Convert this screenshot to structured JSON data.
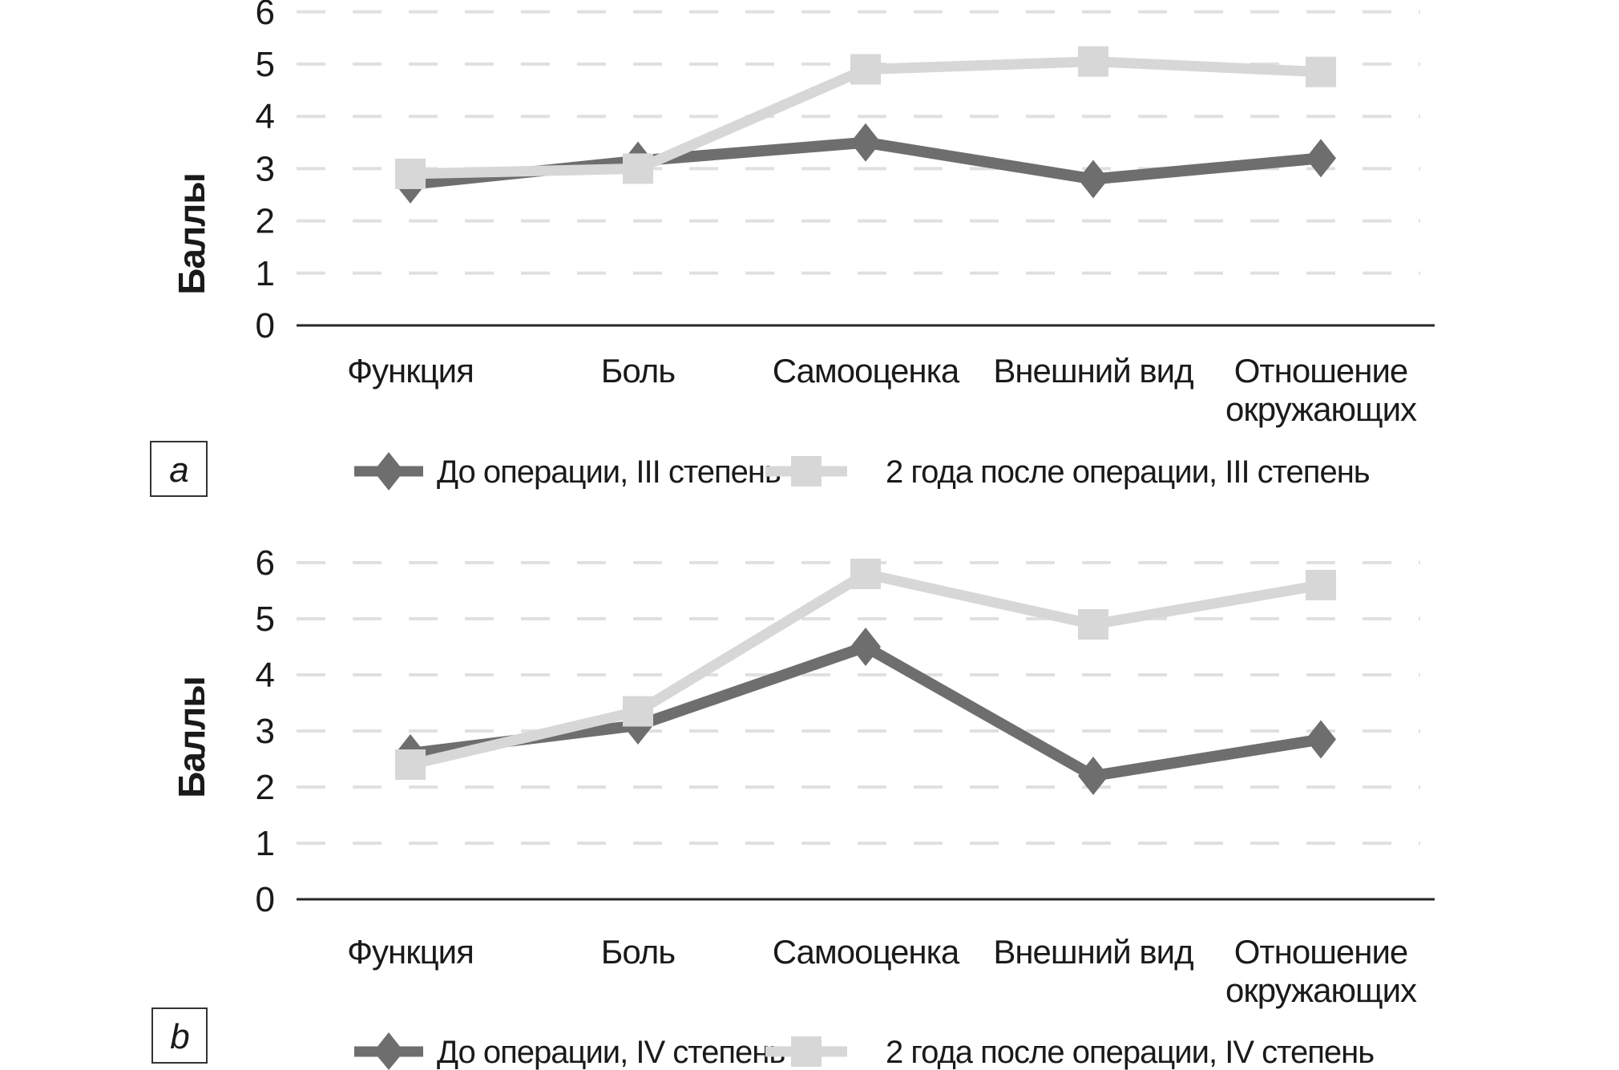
{
  "figure": {
    "background": "#ffffff",
    "text_color": "#1a1a1a",
    "grid_color": "#e0e0e0",
    "axis_color": "#262626"
  },
  "chart_data": [
    {
      "type": "line",
      "panel_label": "a",
      "ylabel": "Баллы",
      "ylim": [
        0,
        6
      ],
      "yticks": [
        0,
        1,
        2,
        3,
        4,
        5,
        6
      ],
      "grid": "horizontal-dashed",
      "legend_position": "bottom",
      "categories": [
        "Функция",
        "Боль",
        "Самооценка",
        "Внешний вид",
        "Отношение окружающих"
      ],
      "series": [
        {
          "name": "До операции, III степень",
          "marker": "diamond",
          "color": "#6e6e6e",
          "values": [
            2.7,
            3.15,
            3.5,
            2.8,
            3.2
          ]
        },
        {
          "name": "2 года после операции, III степень",
          "marker": "square",
          "color": "#d7d7d7",
          "values": [
            2.9,
            3.0,
            4.9,
            5.05,
            4.85
          ]
        }
      ]
    },
    {
      "type": "line",
      "panel_label": "b",
      "ylabel": "Баллы",
      "ylim": [
        0,
        6
      ],
      "yticks": [
        0,
        1,
        2,
        3,
        4,
        5,
        6
      ],
      "grid": "horizontal-dashed",
      "legend_position": "bottom",
      "categories": [
        "Функция",
        "Боль",
        "Самооценка",
        "Внешний вид",
        "Отношение окружающих"
      ],
      "series": [
        {
          "name": "До операции, IV степень",
          "marker": "diamond",
          "color": "#6e6e6e",
          "values": [
            2.6,
            3.1,
            4.5,
            2.2,
            2.85
          ]
        },
        {
          "name": "2 года после операции, IV степень",
          "marker": "square",
          "color": "#d7d7d7",
          "values": [
            2.4,
            3.35,
            5.8,
            4.9,
            5.6
          ]
        }
      ]
    }
  ]
}
